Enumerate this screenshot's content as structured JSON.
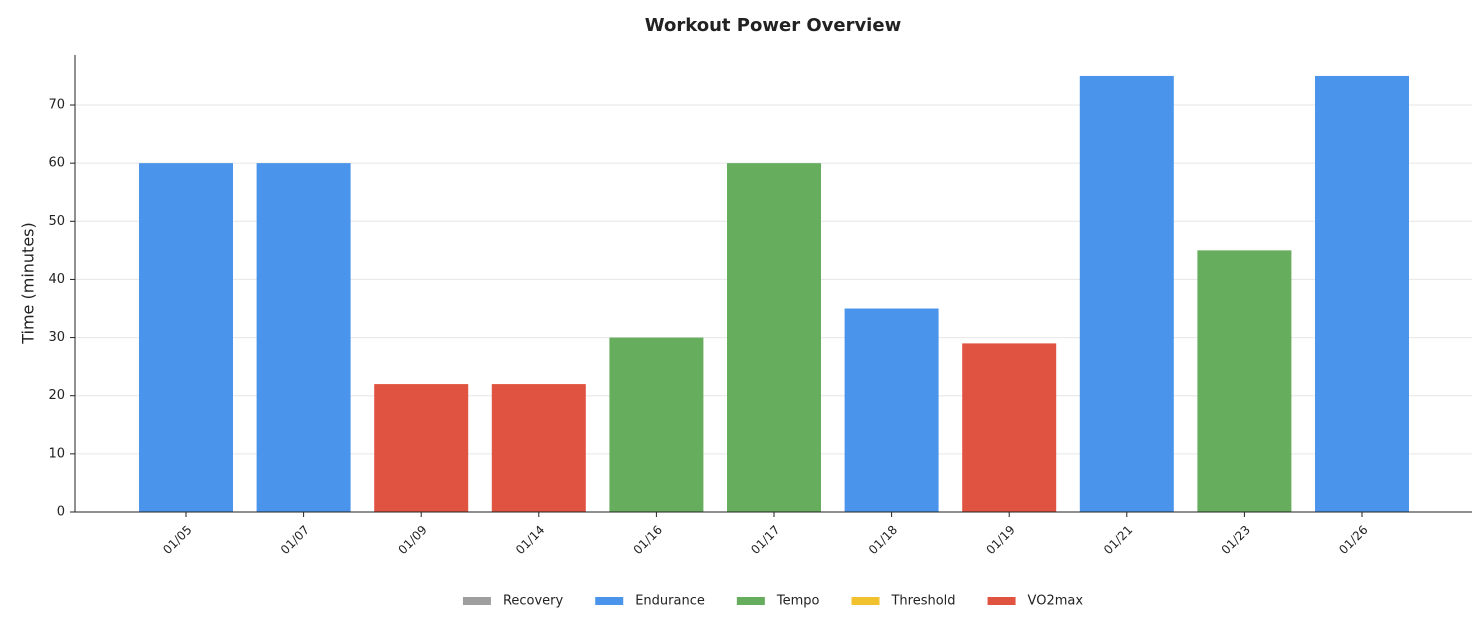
{
  "chart_data": {
    "type": "bar",
    "title": "Workout Power Overview",
    "y_label": "Time (minutes)",
    "categories": [
      "01/05",
      "01/07",
      "01/09",
      "01/14",
      "01/16",
      "01/17",
      "01/18",
      "01/19",
      "01/21",
      "01/23",
      "01/26"
    ],
    "series": [
      {
        "name": "Recovery",
        "color": "#9e9e9e",
        "values": [
          null,
          null,
          null,
          null,
          null,
          null,
          null,
          null,
          null,
          null,
          null
        ]
      },
      {
        "name": "Endurance",
        "color": "#4a94ec",
        "values": [
          60,
          60,
          null,
          null,
          null,
          null,
          35,
          null,
          75,
          null,
          75
        ]
      },
      {
        "name": "Tempo",
        "color": "#66ad5e",
        "values": [
          null,
          null,
          null,
          null,
          30,
          60,
          null,
          null,
          null,
          45,
          null
        ]
      },
      {
        "name": "Threshold",
        "color": "#f2c12e",
        "values": [
          null,
          null,
          null,
          null,
          null,
          null,
          null,
          null,
          null,
          null,
          null
        ]
      },
      {
        "name": "VO2max",
        "color": "#e05340",
        "values": [
          null,
          null,
          22,
          22,
          null,
          null,
          null,
          29,
          null,
          null,
          null
        ]
      }
    ],
    "ylim": [
      0,
      78.6
    ],
    "yticks": [
      0,
      10,
      20,
      30,
      40,
      50,
      60,
      70
    ],
    "grid": true,
    "legend": "bottom"
  }
}
